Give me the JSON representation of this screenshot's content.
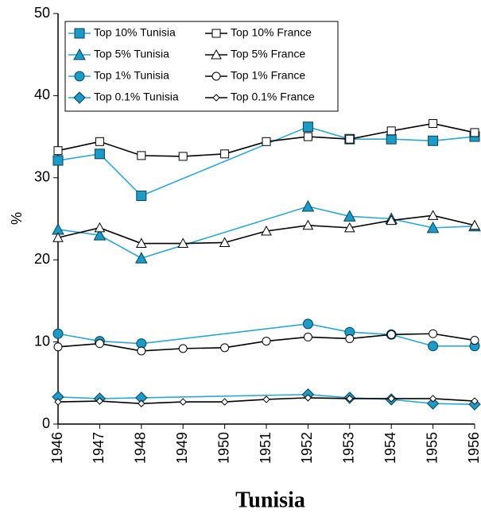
{
  "chart_data": {
    "type": "line",
    "title": "Tunisia",
    "y_label": "%",
    "xlim": [
      1946,
      1956
    ],
    "xticks": [
      1946,
      1947,
      1948,
      1949,
      1950,
      1951,
      1952,
      1953,
      1954,
      1955,
      1956
    ],
    "ylim": [
      0,
      50
    ],
    "yticks": [
      0,
      10,
      20,
      30,
      40,
      50
    ],
    "grid": false,
    "legend": "top-left",
    "series": [
      {
        "name": "Top 10% Tunisia",
        "color": "#2aa6d6",
        "marker": "square",
        "marker_fill": "#1a9bc8",
        "x": [
          1946,
          1947,
          1948,
          1952,
          1953,
          1954,
          1955,
          1956
        ],
        "values": [
          32.1,
          32.9,
          27.8,
          36.2,
          34.7,
          34.7,
          34.5,
          35.0
        ]
      },
      {
        "name": "Top 10% France",
        "color": "#000000",
        "marker": "square",
        "marker_fill": "#ffffff",
        "x": [
          1946,
          1947,
          1948,
          1949,
          1950,
          1951,
          1952,
          1953,
          1954,
          1955,
          1956
        ],
        "values": [
          33.3,
          34.4,
          32.7,
          32.6,
          32.9,
          34.4,
          35.0,
          34.7,
          35.7,
          36.6,
          35.5
        ]
      },
      {
        "name": "Top 5% Tunisia",
        "color": "#2aa6d6",
        "marker": "triangle",
        "marker_fill": "#1a9bc8",
        "x": [
          1946,
          1947,
          1948,
          1952,
          1953,
          1954,
          1955,
          1956
        ],
        "values": [
          23.7,
          23.0,
          20.2,
          26.5,
          25.3,
          25.0,
          23.9,
          24.1
        ]
      },
      {
        "name": "Top 5% France",
        "color": "#000000",
        "marker": "triangle",
        "marker_fill": "#ffffff",
        "x": [
          1946,
          1947,
          1948,
          1949,
          1950,
          1951,
          1952,
          1953,
          1954,
          1955,
          1956
        ],
        "values": [
          22.7,
          23.9,
          22.0,
          22.0,
          22.1,
          23.5,
          24.2,
          23.9,
          24.8,
          25.4,
          24.2
        ]
      },
      {
        "name": "Top 1% Tunisia",
        "color": "#2aa6d6",
        "marker": "circle",
        "marker_fill": "#1a9bc8",
        "x": [
          1946,
          1947,
          1948,
          1952,
          1953,
          1954,
          1955,
          1956
        ],
        "values": [
          11.0,
          10.1,
          9.8,
          12.2,
          11.2,
          10.9,
          9.5,
          9.5
        ]
      },
      {
        "name": "Top 1% France",
        "color": "#000000",
        "marker": "circle",
        "marker_fill": "#ffffff",
        "x": [
          1946,
          1947,
          1948,
          1949,
          1950,
          1951,
          1952,
          1953,
          1954,
          1955,
          1956
        ],
        "values": [
          9.4,
          9.8,
          8.9,
          9.2,
          9.3,
          10.1,
          10.6,
          10.4,
          10.9,
          11.0,
          10.2
        ]
      },
      {
        "name": "Top 0.1% Tunisia",
        "color": "#2aa6d6",
        "marker": "diamond",
        "marker_fill": "#1a9bc8",
        "x": [
          1946,
          1947,
          1948,
          1952,
          1953,
          1954,
          1955,
          1956
        ],
        "values": [
          3.3,
          3.1,
          3.2,
          3.6,
          3.2,
          3.0,
          2.5,
          2.4
        ]
      },
      {
        "name": "Top 0.1% France",
        "color": "#000000",
        "marker": "diamond",
        "marker_fill": "#ffffff",
        "x": [
          1946,
          1947,
          1948,
          1949,
          1950,
          1951,
          1952,
          1953,
          1954,
          1955,
          1956
        ],
        "values": [
          2.7,
          2.8,
          2.5,
          2.7,
          2.7,
          3.0,
          3.2,
          3.1,
          3.1,
          3.1,
          2.8
        ]
      }
    ]
  }
}
